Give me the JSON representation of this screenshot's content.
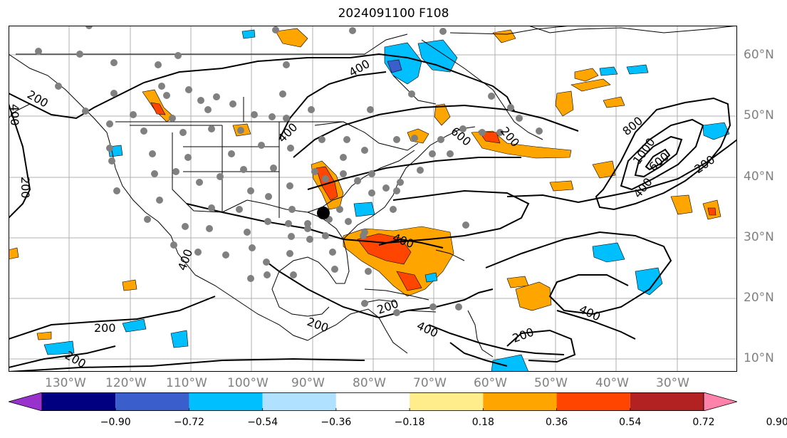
{
  "title": "2024091100 F108",
  "lat_labels": [
    "10°N",
    "20°N",
    "30°N",
    "40°N",
    "50°N",
    "60°N"
  ],
  "lon_labels": [
    "130°W",
    "120°W",
    "110°W",
    "100°W",
    "90°W",
    "80°W",
    "70°W",
    "60°W",
    "50°W",
    "40°W",
    "30°W"
  ],
  "contour_labels": [
    "200",
    "400",
    "600",
    "800",
    "1000"
  ],
  "colorbar": {
    "ticks": [
      "−0.90",
      "−0.72",
      "−0.54",
      "−0.36",
      "−0.18",
      "0.18",
      "0.36",
      "0.54",
      "0.72",
      "0.90"
    ],
    "colors": [
      "#9932CC",
      "#000080",
      "#3A5FCD",
      "#00BFFF",
      "#B0E2FF",
      "#FFFFFF",
      "#FFEC8B",
      "#FFA500",
      "#FF4500",
      "#B22222",
      "#FF82AB"
    ]
  }
}
